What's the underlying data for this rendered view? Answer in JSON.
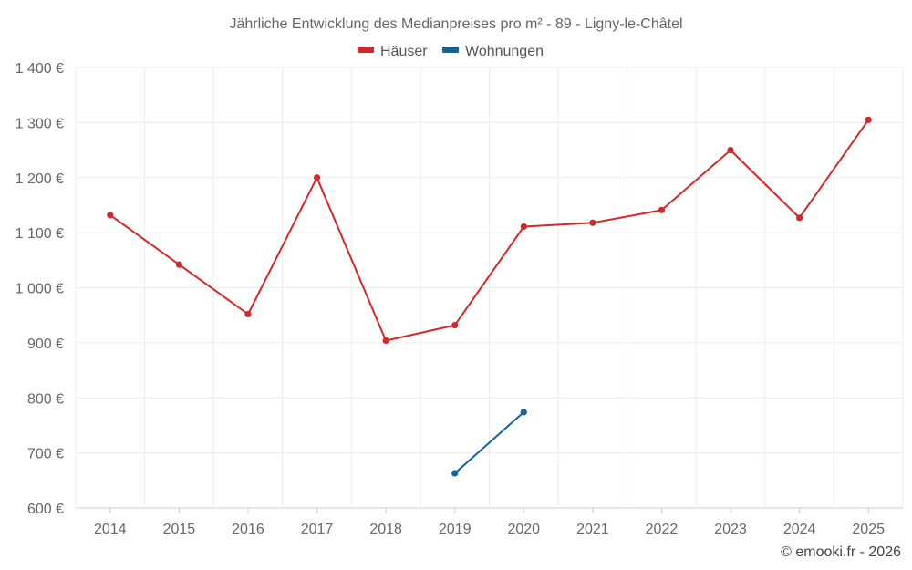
{
  "chart_data": {
    "type": "line",
    "title": "Jährliche Entwicklung des Medianpreises pro m² - 89 - Ligny-le-Châtel",
    "categories": [
      "2014",
      "2015",
      "2016",
      "2017",
      "2018",
      "2019",
      "2020",
      "2021",
      "2022",
      "2023",
      "2024",
      "2025"
    ],
    "series": [
      {
        "name": "Häuser",
        "color": "#d62728",
        "values": [
          1132,
          1042,
          952,
          1200,
          904,
          932,
          1111,
          1118,
          1141,
          1250,
          1127,
          1305
        ]
      },
      {
        "name": "Wohnungen",
        "color": "#11639b",
        "values": [
          null,
          null,
          null,
          null,
          null,
          663,
          774,
          null,
          null,
          null,
          null,
          null
        ]
      }
    ],
    "ylim": [
      600,
      1400
    ],
    "yticks": [
      600,
      700,
      800,
      900,
      1000,
      1100,
      1200,
      1300,
      1400
    ],
    "ytick_labels": [
      "600 €",
      "700 €",
      "800 €",
      "900 €",
      "1 000 €",
      "1 100 €",
      "1 200 €",
      "1 300 €",
      "1 400 €"
    ],
    "xlabel": "",
    "ylabel": "",
    "grid": true,
    "legend_position": "top-center"
  },
  "credit": "© emooki.fr - 2026"
}
